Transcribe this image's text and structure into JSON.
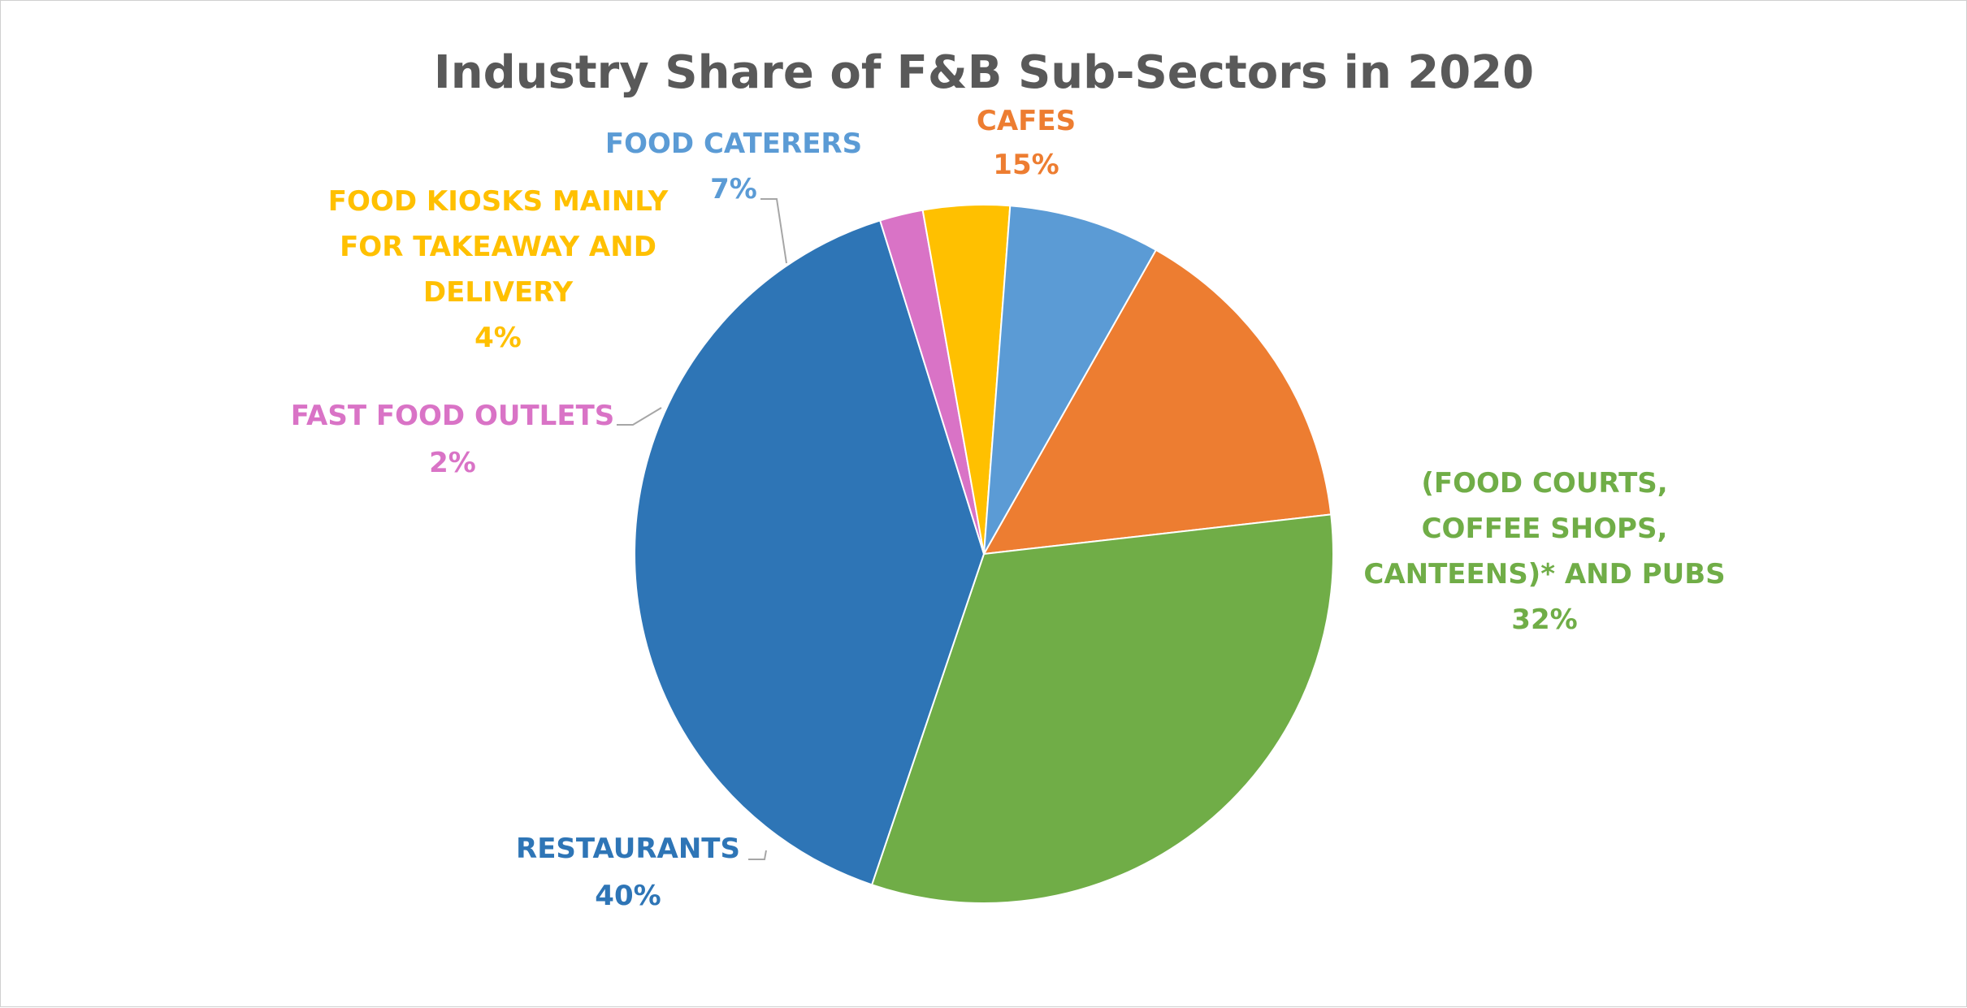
{
  "chart_data": {
    "type": "pie",
    "title": "Industry Share of F&B Sub-Sectors in 2020",
    "unit": "%",
    "legend": "none",
    "slices": [
      {
        "label": "CAFES",
        "value": 15,
        "display": "15%",
        "color": "#ED7D31"
      },
      {
        "label": "(FOOD COURTS, COFFEE SHOPS, CANTEENS)* AND PUBS",
        "label_lines": [
          "(FOOD COURTS,",
          "COFFEE SHOPS,",
          "CANTEENS)* AND PUBS"
        ],
        "value": 32,
        "display": "32%",
        "color": "#70AD47"
      },
      {
        "label": "RESTAURANTS",
        "value": 40,
        "display": "40%",
        "color": "#2E75B6"
      },
      {
        "label": "FAST FOOD OUTLETS",
        "value": 2,
        "display": "2%",
        "color": "#D973C6"
      },
      {
        "label": "FOOD KIOSKS MAINLY FOR TAKEAWAY AND DELIVERY",
        "label_lines": [
          "FOOD KIOSKS MAINLY",
          "FOR TAKEAWAY AND",
          "DELIVERY"
        ],
        "value": 4,
        "display": "4%",
        "color": "#FFC000"
      },
      {
        "label": "FOOD CATERERS",
        "value": 7,
        "display": "7%",
        "color": "#5B9BD5"
      }
    ]
  }
}
